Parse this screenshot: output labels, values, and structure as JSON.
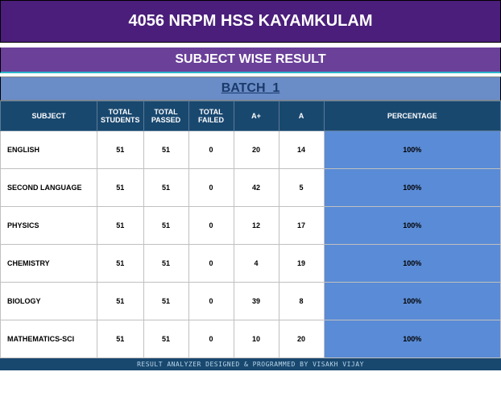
{
  "title": "4056 NRPM HSS KAYAMKULAM",
  "subtitle": "SUBJECT WISE RESULT",
  "batch_label": "BATCH_1",
  "footer_text": "RESULT ANALYZER DESIGNED & PROGRAMMED BY VISAKH VIJAY",
  "colors": {
    "title_bg": "#4a1e7a",
    "subtitle_bg": "#6a4099",
    "batch_bg": "#6a8cc7",
    "header_bg": "#19486f",
    "pct_bg": "#5a8bd6",
    "accent_line": "#2bb5c9"
  },
  "table": {
    "columns": [
      "SUBJECT",
      "TOTAL STUDENTS",
      "TOTAL PASSED",
      "TOTAL FAILED",
      "A+",
      "A",
      "PERCENTAGE"
    ],
    "rows": [
      {
        "subject": "ENGLISH",
        "total_students": "51",
        "total_passed": "51",
        "total_failed": "0",
        "a_plus": "20",
        "a": "14",
        "percentage": "100%"
      },
      {
        "subject": "SECOND LANGUAGE",
        "total_students": "51",
        "total_passed": "51",
        "total_failed": "0",
        "a_plus": "42",
        "a": "5",
        "percentage": "100%"
      },
      {
        "subject": "PHYSICS",
        "total_students": "51",
        "total_passed": "51",
        "total_failed": "0",
        "a_plus": "12",
        "a": "17",
        "percentage": "100%"
      },
      {
        "subject": "CHEMISTRY",
        "total_students": "51",
        "total_passed": "51",
        "total_failed": "0",
        "a_plus": "4",
        "a": "19",
        "percentage": "100%"
      },
      {
        "subject": "BIOLOGY",
        "total_students": "51",
        "total_passed": "51",
        "total_failed": "0",
        "a_plus": "39",
        "a": "8",
        "percentage": "100%"
      },
      {
        "subject": "MATHEMATICS-SCI",
        "total_students": "51",
        "total_passed": "51",
        "total_failed": "0",
        "a_plus": "10",
        "a": "20",
        "percentage": "100%"
      }
    ]
  }
}
